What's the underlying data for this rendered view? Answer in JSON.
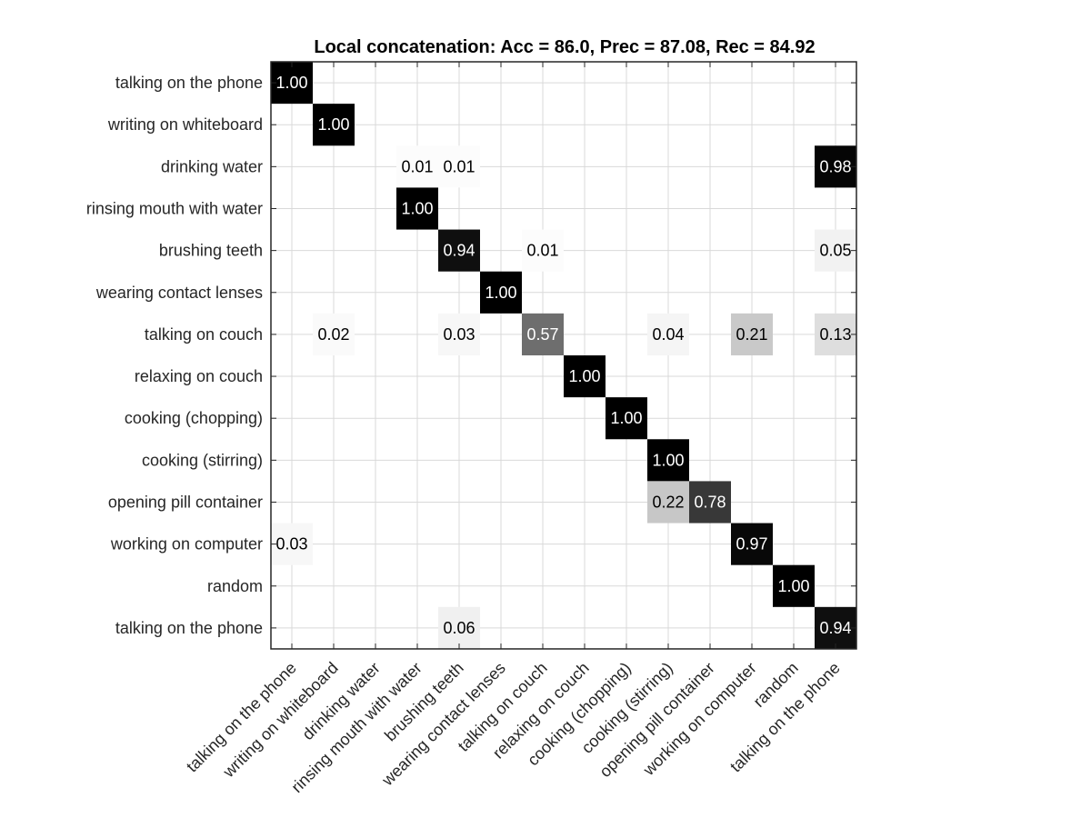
{
  "chart_data": {
    "type": "heatmap",
    "title": "Local concatenation: Acc = 86.0, Prec = 87.08, Rec = 84.92",
    "row_labels": [
      "talking on the phone",
      "writing on whiteboard",
      "drinking water",
      "rinsing mouth with water",
      "brushing teeth",
      "wearing contact lenses",
      "talking on couch",
      "relaxing on couch",
      "cooking (chopping)",
      "cooking (stirring)",
      "opening pill container",
      "working on computer",
      "random",
      "talking on the phone"
    ],
    "col_labels": [
      "talking on the phone",
      "writing on whiteboard",
      "drinking water",
      "rinsing mouth with water",
      "brushing teeth",
      "wearing contact lenses",
      "talking on couch",
      "relaxing on couch",
      "cooking (chopping)",
      "cooking (stirring)",
      "opening pill container",
      "working on computer",
      "random",
      "talking on the phone"
    ],
    "cells": [
      {
        "row": 0,
        "col": 0,
        "value": 1.0,
        "label": "1.00"
      },
      {
        "row": 1,
        "col": 1,
        "value": 1.0,
        "label": "1.00"
      },
      {
        "row": 2,
        "col": 3,
        "value": 0.01,
        "label": "0.01"
      },
      {
        "row": 2,
        "col": 4,
        "value": 0.01,
        "label": "0.01"
      },
      {
        "row": 2,
        "col": 13,
        "value": 0.98,
        "label": "0.98"
      },
      {
        "row": 3,
        "col": 3,
        "value": 1.0,
        "label": "1.00"
      },
      {
        "row": 4,
        "col": 4,
        "value": 0.94,
        "label": "0.94"
      },
      {
        "row": 4,
        "col": 6,
        "value": 0.01,
        "label": "0.01"
      },
      {
        "row": 4,
        "col": 13,
        "value": 0.05,
        "label": "0.05"
      },
      {
        "row": 5,
        "col": 5,
        "value": 1.0,
        "label": "1.00"
      },
      {
        "row": 6,
        "col": 1,
        "value": 0.02,
        "label": "0.02"
      },
      {
        "row": 6,
        "col": 4,
        "value": 0.03,
        "label": "0.03"
      },
      {
        "row": 6,
        "col": 6,
        "value": 0.57,
        "label": "0.57"
      },
      {
        "row": 6,
        "col": 9,
        "value": 0.04,
        "label": "0.04"
      },
      {
        "row": 6,
        "col": 11,
        "value": 0.21,
        "label": "0.21"
      },
      {
        "row": 6,
        "col": 13,
        "value": 0.13,
        "label": "0.13"
      },
      {
        "row": 7,
        "col": 7,
        "value": 1.0,
        "label": "1.00"
      },
      {
        "row": 8,
        "col": 8,
        "value": 1.0,
        "label": "1.00"
      },
      {
        "row": 9,
        "col": 9,
        "value": 1.0,
        "label": "1.00"
      },
      {
        "row": 10,
        "col": 9,
        "value": 0.22,
        "label": "0.22"
      },
      {
        "row": 10,
        "col": 10,
        "value": 0.78,
        "label": "0.78"
      },
      {
        "row": 11,
        "col": 0,
        "value": 0.03,
        "label": "0.03"
      },
      {
        "row": 11,
        "col": 11,
        "value": 0.97,
        "label": "0.97"
      },
      {
        "row": 12,
        "col": 12,
        "value": 1.0,
        "label": "1.00"
      },
      {
        "row": 13,
        "col": 4,
        "value": 0.06,
        "label": "0.06"
      },
      {
        "row": 13,
        "col": 13,
        "value": 0.94,
        "label": "0.94"
      }
    ],
    "colormap": "gray-reversed",
    "grid": true
  }
}
